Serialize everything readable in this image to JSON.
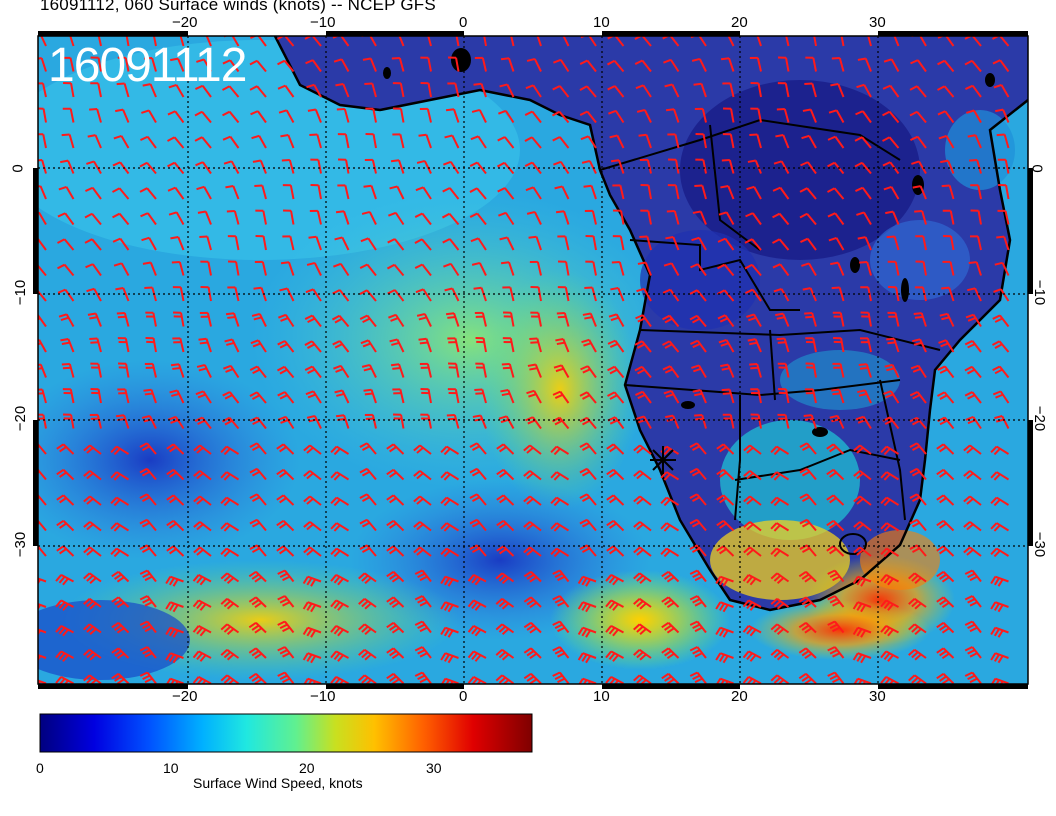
{
  "title": "16091112, 060 Surface winds (knots) -- NCEP GFS",
  "overlay_label": "16091112",
  "map": {
    "longitude_ticks": [
      "−20",
      "−10",
      "0",
      "10",
      "20",
      "30"
    ],
    "latitude_ticks": [
      "0",
      "−10",
      "−20",
      "−30"
    ],
    "lon_range": [
      -30,
      41
    ],
    "lat_range": [
      -41,
      10
    ],
    "grid": "dotted",
    "land_color": "#2a2f9a",
    "barb_color": "#ff1a1a",
    "coastline_color": "#000000",
    "marker": {
      "symbol": "star",
      "lon": 14.5,
      "lat": -23
    }
  },
  "colorbar": {
    "title": "Surface Wind Speed, knots",
    "tick_labels": [
      "0",
      "10",
      "20",
      "30"
    ],
    "range": [
      0,
      36
    ],
    "colors": [
      "#00007f",
      "#0000d0",
      "#004cff",
      "#00a8ff",
      "#29ffce",
      "#7dff7a",
      "#ceff29",
      "#ffc400",
      "#ff6800",
      "#e40000",
      "#7f0000"
    ]
  }
}
